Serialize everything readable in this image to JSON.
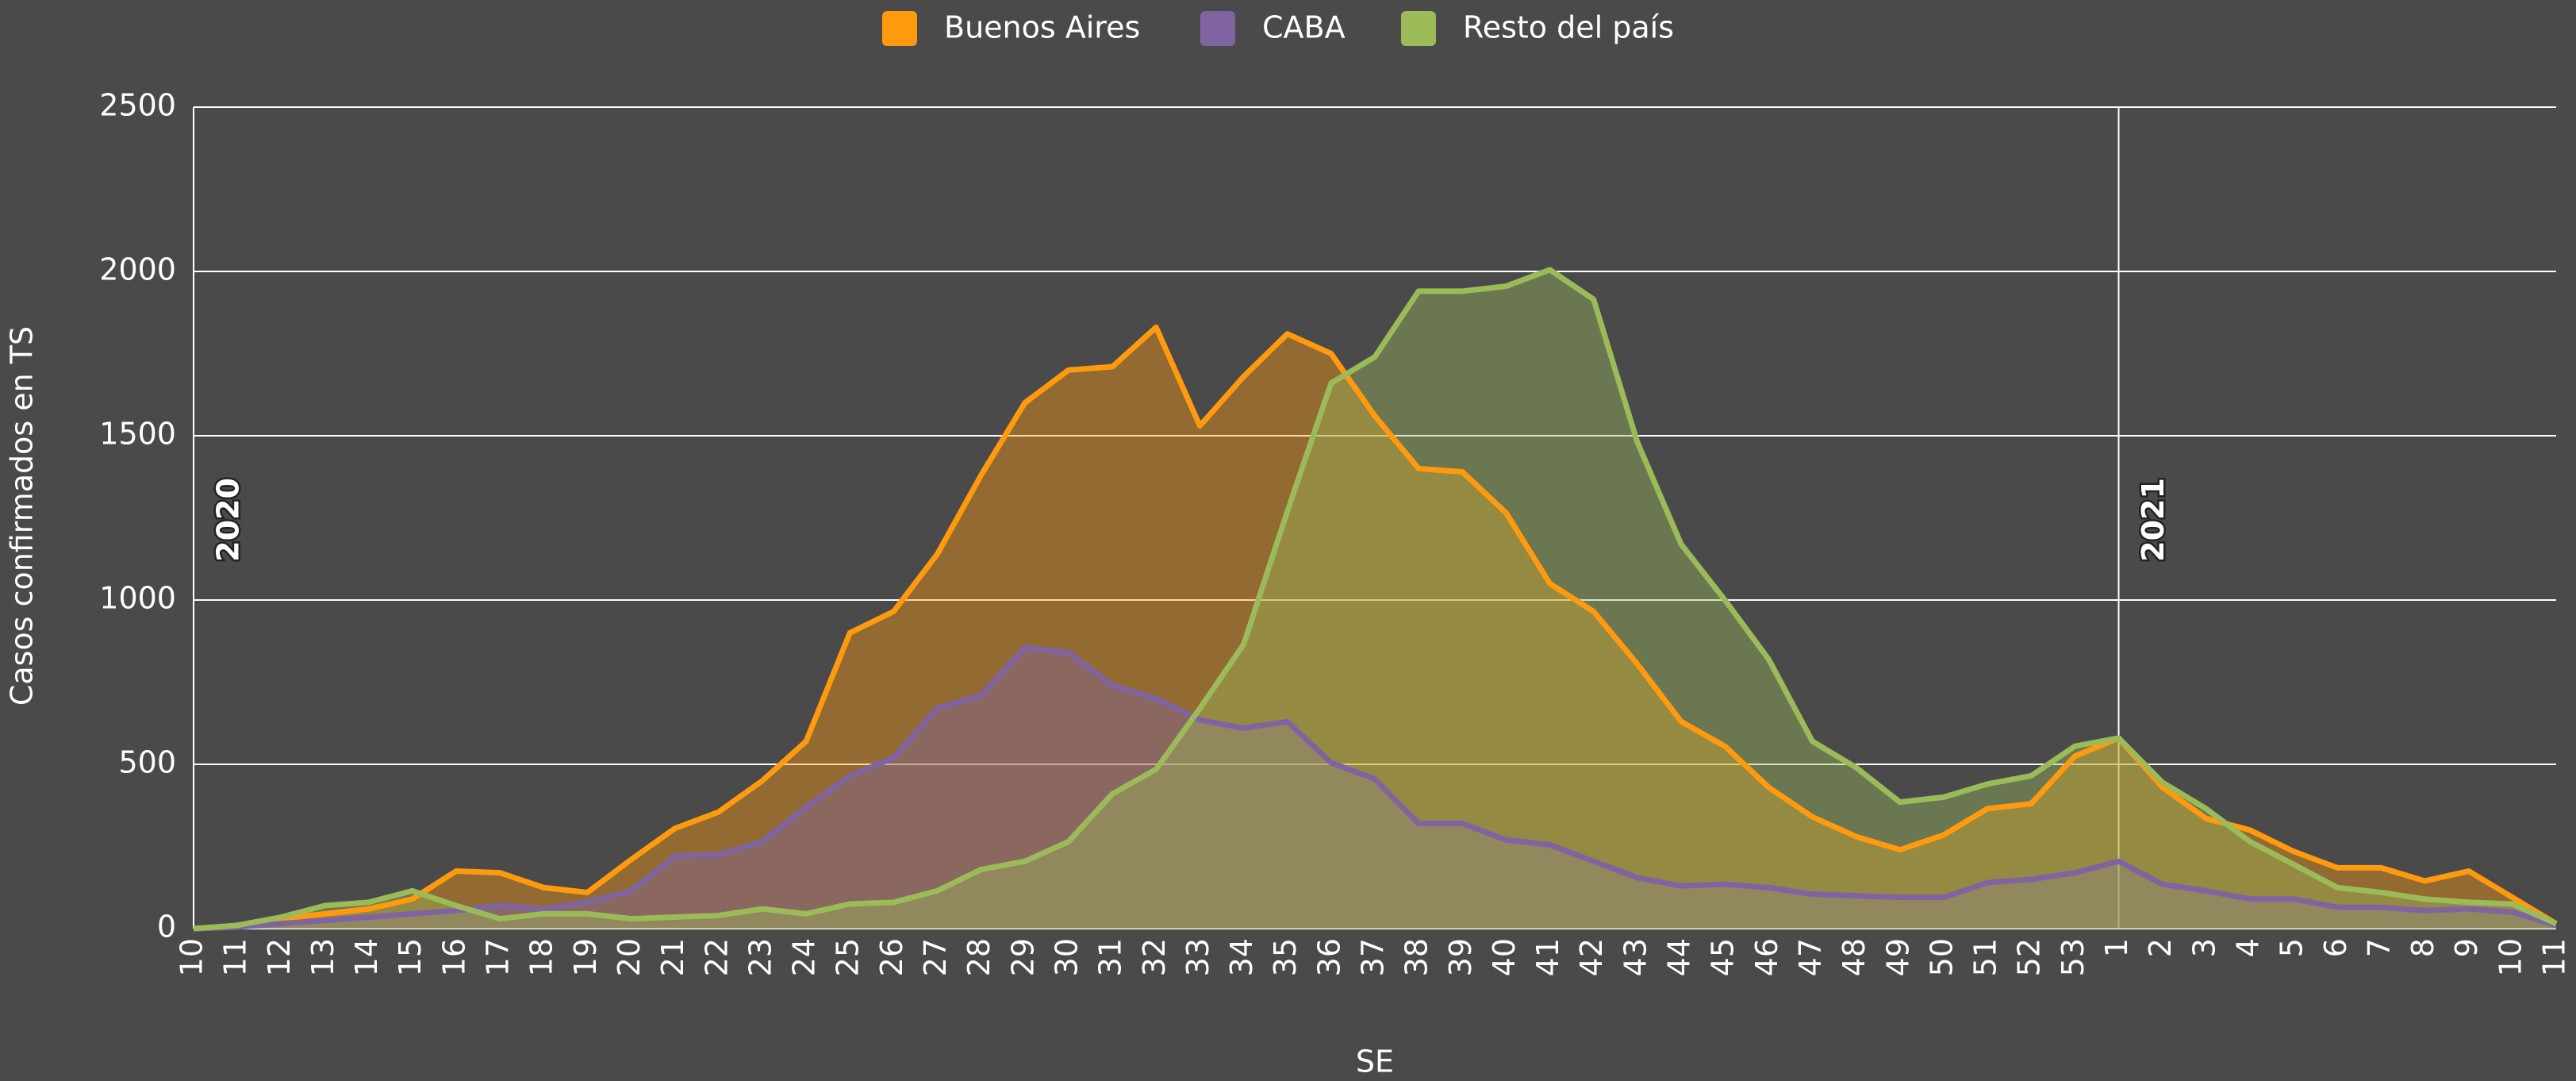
{
  "chart_data": {
    "type": "area",
    "categories": [
      "10",
      "11",
      "12",
      "13",
      "14",
      "15",
      "16",
      "17",
      "18",
      "19",
      "20",
      "21",
      "22",
      "23",
      "24",
      "25",
      "26",
      "27",
      "28",
      "29",
      "30",
      "31",
      "32",
      "33",
      "34",
      "35",
      "36",
      "37",
      "38",
      "39",
      "40",
      "41",
      "42",
      "43",
      "44",
      "45",
      "46",
      "47",
      "48",
      "49",
      "50",
      "51",
      "52",
      "53",
      "1",
      "2",
      "3",
      "4",
      "5",
      "6",
      "7",
      "8",
      "9",
      "10",
      "11"
    ],
    "series": [
      {
        "name": "Buenos Aires",
        "color": "#ff9a0e",
        "values": [
          0,
          5,
          30,
          45,
          60,
          90,
          175,
          170,
          125,
          110,
          210,
          305,
          355,
          450,
          570,
          900,
          965,
          1140,
          1380,
          1600,
          1700,
          1710,
          1830,
          1530,
          1680,
          1810,
          1750,
          1560,
          1400,
          1390,
          1265,
          1050,
          965,
          805,
          630,
          555,
          430,
          340,
          280,
          240,
          285,
          365,
          380,
          525,
          580,
          430,
          335,
          300,
          235,
          185,
          185,
          145,
          175,
          95,
          15
        ]
      },
      {
        "name": "CABA",
        "color": "#8064a2",
        "values": [
          0,
          5,
          15,
          25,
          35,
          45,
          55,
          70,
          60,
          80,
          115,
          220,
          225,
          265,
          370,
          465,
          520,
          670,
          710,
          855,
          840,
          740,
          700,
          635,
          610,
          630,
          505,
          455,
          320,
          320,
          270,
          255,
          205,
          155,
          130,
          135,
          125,
          105,
          100,
          95,
          95,
          140,
          150,
          170,
          205,
          135,
          115,
          90,
          90,
          65,
          65,
          55,
          60,
          50,
          10
        ]
      },
      {
        "name": "Resto del país",
        "color": "#9bbb59",
        "values": [
          0,
          10,
          35,
          70,
          80,
          115,
          70,
          30,
          45,
          45,
          30,
          35,
          40,
          60,
          45,
          75,
          80,
          115,
          180,
          205,
          265,
          410,
          485,
          670,
          865,
          1270,
          1660,
          1740,
          1940,
          1940,
          1955,
          2005,
          1915,
          1480,
          1170,
          1000,
          820,
          570,
          490,
          385,
          400,
          440,
          465,
          555,
          580,
          445,
          365,
          265,
          195,
          125,
          110,
          90,
          80,
          75,
          15
        ]
      }
    ],
    "annotations": [
      "2020",
      "2021"
    ],
    "x_label": "SE",
    "y_label": "Casos confirmados en TS",
    "ylim": [
      0,
      2500
    ],
    "yticks": [
      0,
      500,
      1000,
      1500,
      2000,
      2500
    ],
    "grid": true,
    "legend": "top"
  }
}
